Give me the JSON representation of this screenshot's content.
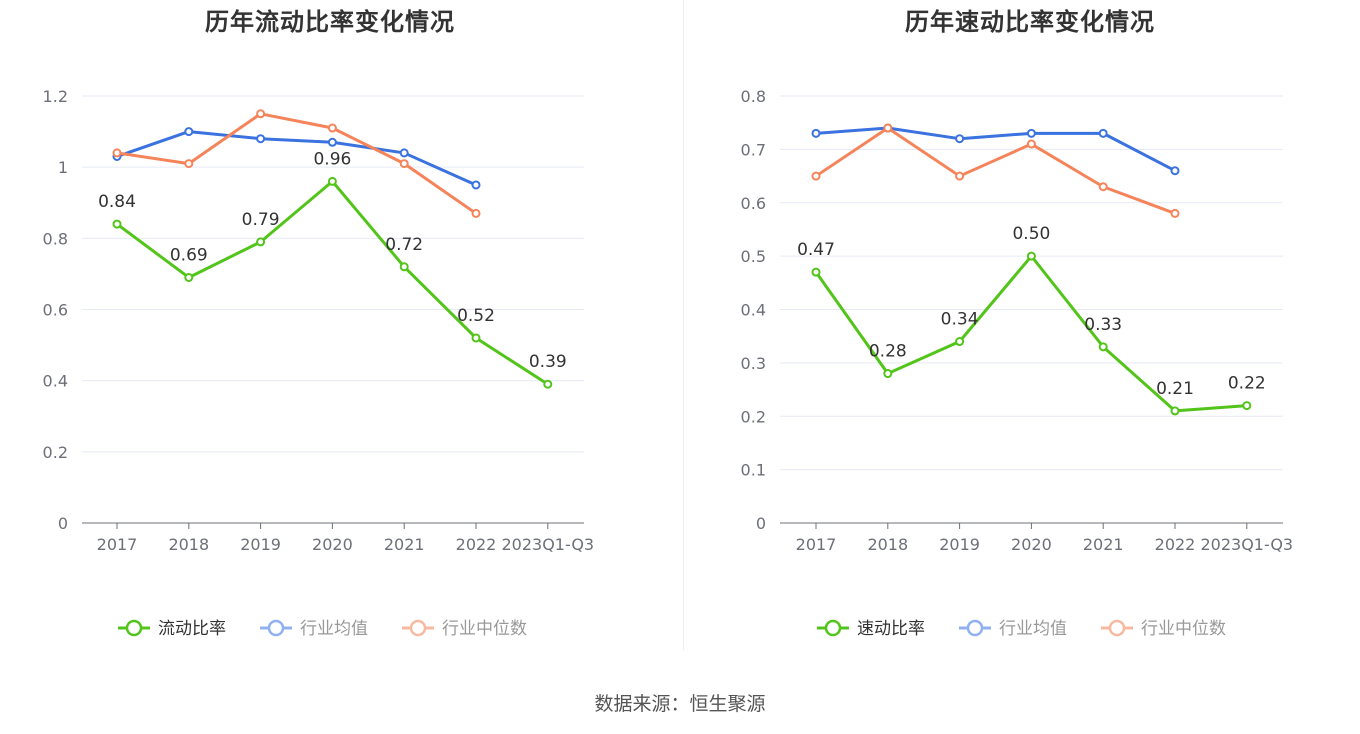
{
  "colors": {
    "primary": "#52c41a",
    "industry_avg": "#3a72e0",
    "industry_median": "#f5845a",
    "industry_avg_legend": "#91b0f0",
    "industry_median_legend": "#f8b9a0",
    "grid": "#e6eaf5",
    "axis": "#6e7079"
  },
  "source": "数据来源：恒生聚源",
  "chart_data": [
    {
      "type": "line",
      "title": "历年流动比率变化情况",
      "categories": [
        "2017",
        "2018",
        "2019",
        "2020",
        "2021",
        "2022",
        "2023Q1-Q3"
      ],
      "ylim": [
        0,
        1.2
      ],
      "yticks": [
        "0",
        "0.2",
        "0.4",
        "0.6",
        "0.8",
        "1",
        "1.2"
      ],
      "ytick_values": [
        0,
        0.2,
        0.4,
        0.6,
        0.8,
        1,
        1.2
      ],
      "grid": true,
      "legend_position": "bottom",
      "series": [
        {
          "name": "流动比率",
          "values": [
            0.84,
            0.69,
            0.79,
            0.96,
            0.72,
            0.52,
            0.39
          ],
          "labels": [
            "0.84",
            "0.69",
            "0.79",
            "0.96",
            "0.72",
            "0.52",
            "0.39"
          ]
        },
        {
          "name": "行业均值",
          "values": [
            1.03,
            1.1,
            1.08,
            1.07,
            1.04,
            0.95,
            null
          ]
        },
        {
          "name": "行业中位数",
          "values": [
            1.04,
            1.01,
            1.15,
            1.11,
            1.01,
            0.87,
            null
          ]
        }
      ]
    },
    {
      "type": "line",
      "title": "历年速动比率变化情况",
      "categories": [
        "2017",
        "2018",
        "2019",
        "2020",
        "2021",
        "2022",
        "2023Q1-Q3"
      ],
      "ylim": [
        0,
        0.8
      ],
      "yticks": [
        "0",
        "0.1",
        "0.2",
        "0.3",
        "0.4",
        "0.5",
        "0.6",
        "0.7",
        "0.8"
      ],
      "ytick_values": [
        0,
        0.1,
        0.2,
        0.3,
        0.4,
        0.5,
        0.6,
        0.7,
        0.8
      ],
      "grid": true,
      "legend_position": "bottom",
      "series": [
        {
          "name": "速动比率",
          "values": [
            0.47,
            0.28,
            0.34,
            0.5,
            0.33,
            0.21,
            0.22
          ],
          "labels": [
            "0.47",
            "0.28",
            "0.34",
            "0.50",
            "0.33",
            "0.21",
            "0.22"
          ]
        },
        {
          "name": "行业均值",
          "values": [
            0.73,
            0.74,
            0.72,
            0.73,
            0.73,
            0.66,
            null
          ]
        },
        {
          "name": "行业中位数",
          "values": [
            0.65,
            0.74,
            0.65,
            0.71,
            0.63,
            0.58,
            null
          ]
        }
      ]
    }
  ]
}
